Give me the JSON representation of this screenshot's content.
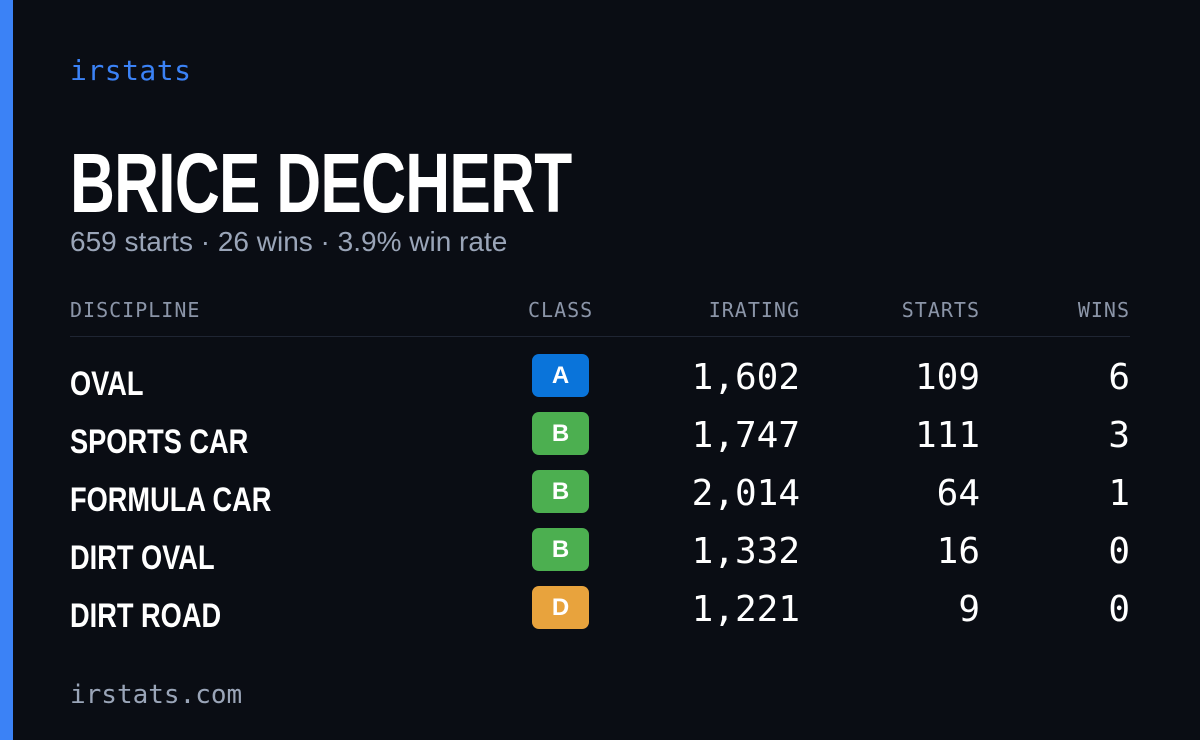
{
  "brand": "irstats",
  "driver": {
    "name": "BRICE DECHERT",
    "summary": "659 starts · 26 wins · 3.9% win rate"
  },
  "table": {
    "headers": {
      "discipline": "DISCIPLINE",
      "class": "CLASS",
      "irating": "IRATING",
      "starts": "STARTS",
      "wins": "WINS"
    },
    "rows": [
      {
        "discipline": "OVAL",
        "class": "A",
        "class_color": "#0a74da",
        "irating": "1,602",
        "starts": "109",
        "wins": "6"
      },
      {
        "discipline": "SPORTS CAR",
        "class": "B",
        "class_color": "#4caf50",
        "irating": "1,747",
        "starts": "111",
        "wins": "3"
      },
      {
        "discipline": "FORMULA CAR",
        "class": "B",
        "class_color": "#4caf50",
        "irating": "2,014",
        "starts": "64",
        "wins": "1"
      },
      {
        "discipline": "DIRT OVAL",
        "class": "B",
        "class_color": "#4caf50",
        "irating": "1,332",
        "starts": "16",
        "wins": "0"
      },
      {
        "discipline": "DIRT ROAD",
        "class": "D",
        "class_color": "#e8a33d",
        "irating": "1,221",
        "starts": "9",
        "wins": "0"
      }
    ]
  },
  "footer": "irstats.com",
  "colors": {
    "background": "#0a0d14",
    "accent": "#3b82f6",
    "muted_text": "#9aa5b8"
  }
}
